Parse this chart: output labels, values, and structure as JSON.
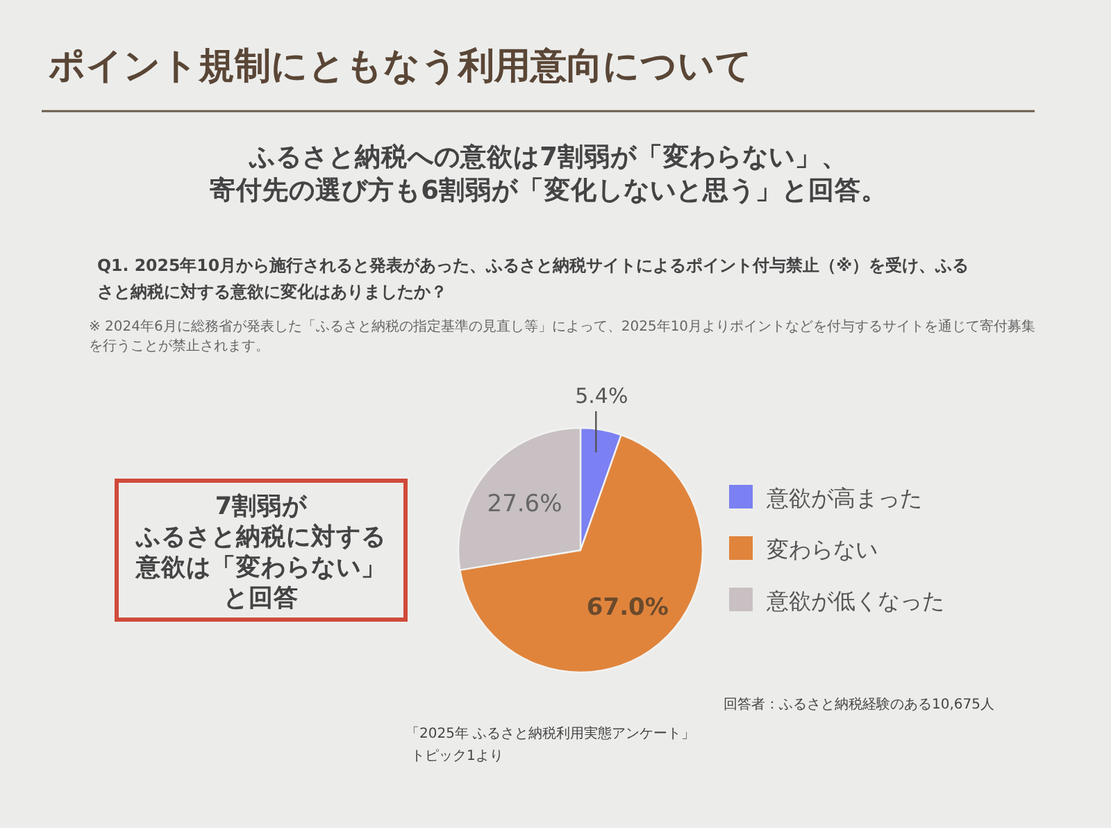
{
  "chart_data": {
    "type": "pie",
    "title": "ポイント規制にともなう利用意向について",
    "subtitle": "ふるさと納税への意欲は7割弱が「変わらない」、寄付先の選び方も6割弱が「変化しないと思う」と回答。",
    "categories": [
      "意欲が高まった",
      "変わらない",
      "意欲が低くなった"
    ],
    "values": [
      5.4,
      67.0,
      27.6
    ],
    "value_labels": [
      "5.4%",
      "67.0%",
      "27.6%"
    ],
    "colors": [
      "#7b80f2",
      "#e0843c",
      "#c8c0c2"
    ],
    "legend": "right",
    "annotations": [
      "Q1. 2025年10月から施行されると発表があった、ふるさと納税サイトによるポイント付与禁止（※）を受け、ふるさと納税に対する意欲に変化はありましたか？",
      "※ 2024年6月に総務省が発表した「ふるさと納税の指定基準の見直し等」によって、2025年10月よりポイントなどを付与するサイトを通じて寄付募集を行うことが禁止されます。",
      "7割弱が",
      "ふるさと納税に対する",
      "意欲は「変わらない」",
      "と回答",
      "回答者：ふるさと納税経験のある10,675人",
      "「2025年 ふるさと納税利用実態アンケート」",
      "トピック1より"
    ]
  }
}
